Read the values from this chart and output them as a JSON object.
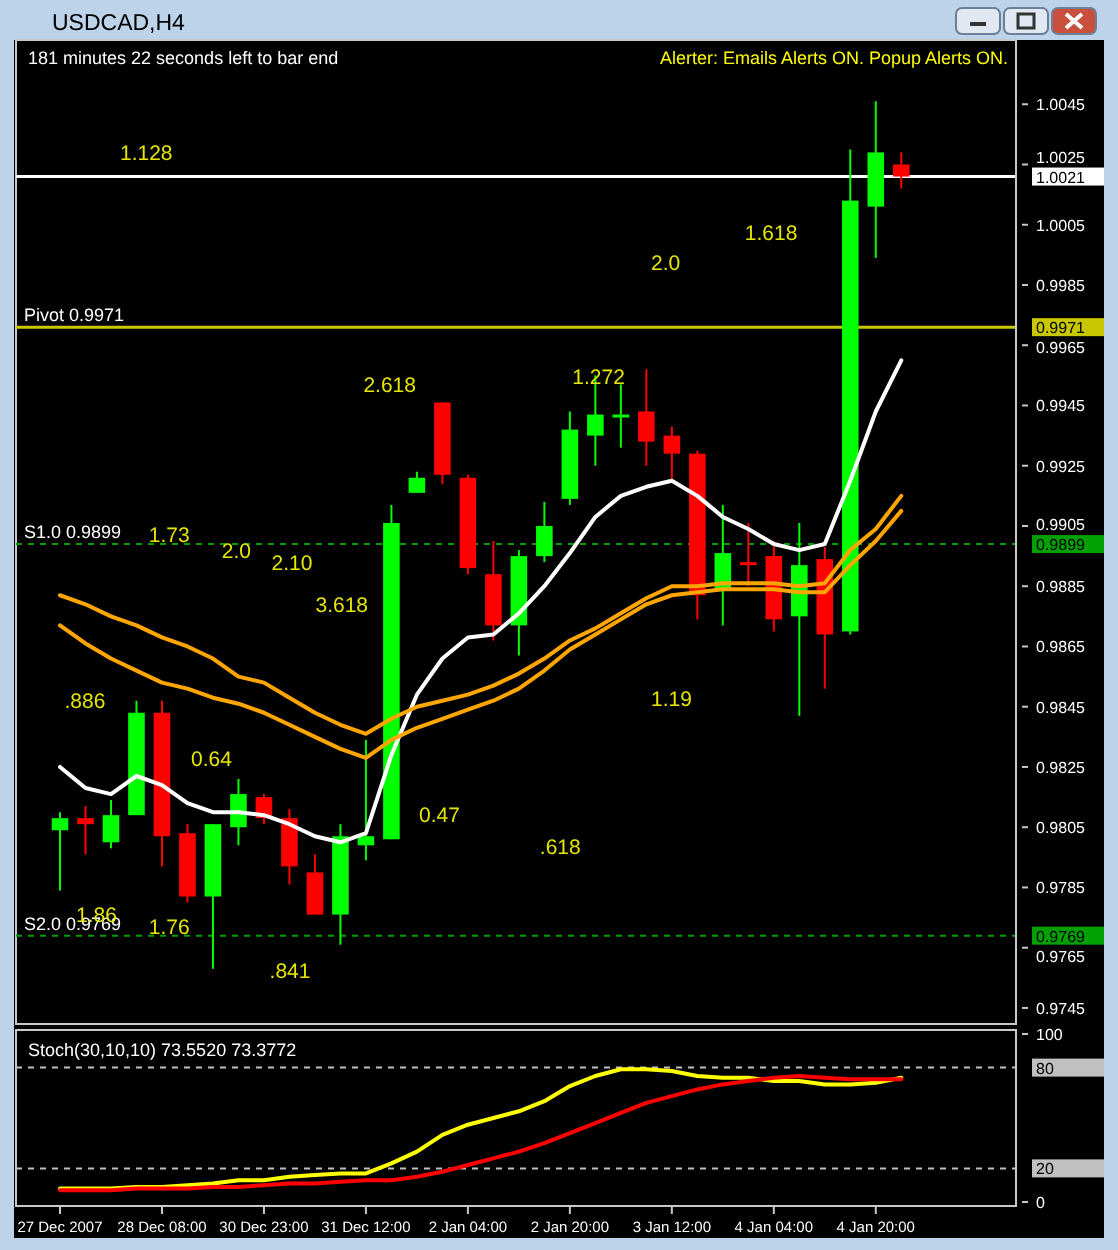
{
  "chart_data": [
    {
      "type": "candlestick",
      "title": "USDCAD,H4",
      "categories": [
        null,
        null,
        null,
        null,
        null,
        null,
        null,
        null,
        null,
        null,
        null,
        null,
        null,
        null,
        null,
        null,
        null,
        null,
        null,
        null,
        null,
        null,
        null,
        null,
        null,
        null,
        null,
        null,
        null,
        null,
        null,
        null,
        null,
        null
      ],
      "ohlc": [
        [
          0.9804,
          0.981,
          0.9784,
          0.9808
        ],
        [
          0.9808,
          0.9812,
          0.9796,
          0.9806
        ],
        [
          0.98,
          0.9814,
          0.9798,
          0.9809
        ],
        [
          0.9809,
          0.9847,
          0.9809,
          0.9843
        ],
        [
          0.9843,
          0.9847,
          0.9792,
          0.9802
        ],
        [
          0.9803,
          0.9806,
          0.978,
          0.9782
        ],
        [
          0.9782,
          0.9806,
          0.9758,
          0.9806
        ],
        [
          0.9805,
          0.9821,
          0.9799,
          0.9816
        ],
        [
          0.9815,
          0.9816,
          0.9806,
          0.9808
        ],
        [
          0.9808,
          0.9811,
          0.9786,
          0.9792
        ],
        [
          0.979,
          0.9796,
          0.9776,
          0.9776
        ],
        [
          0.9776,
          0.9806,
          0.9766,
          0.9802
        ],
        [
          0.9799,
          0.9834,
          0.9794,
          0.9802
        ],
        [
          0.9801,
          0.9912,
          0.9801,
          0.9906
        ],
        [
          0.9916,
          0.9923,
          0.9916,
          0.9921
        ],
        [
          0.9946,
          0.9946,
          0.9919,
          0.9922
        ],
        [
          0.9921,
          0.9922,
          0.9889,
          0.9891
        ],
        [
          0.9889,
          0.99,
          0.9867,
          0.9872
        ],
        [
          0.9872,
          0.9897,
          0.9862,
          0.9895
        ],
        [
          0.9895,
          0.9913,
          0.9893,
          0.9905
        ],
        [
          0.9914,
          0.9943,
          0.9912,
          0.9937
        ],
        [
          0.9935,
          0.9955,
          0.9925,
          0.9942
        ],
        [
          0.9941,
          0.9952,
          0.9931,
          0.9942
        ],
        [
          0.9943,
          0.9957,
          0.9925,
          0.9933
        ],
        [
          0.9935,
          0.9938,
          0.992,
          0.9929
        ],
        [
          0.9929,
          0.993,
          0.9874,
          0.9882
        ],
        [
          0.9884,
          0.9912,
          0.9872,
          0.9896
        ],
        [
          0.9893,
          0.9906,
          0.9885,
          0.9892
        ],
        [
          0.9895,
          0.99,
          0.987,
          0.9874
        ],
        [
          0.9875,
          0.9906,
          0.9842,
          0.9892
        ],
        [
          0.9894,
          0.9898,
          0.9851,
          0.9869
        ],
        [
          0.987,
          1.003,
          0.9869,
          1.0013
        ],
        [
          1.0011,
          1.0046,
          0.9994,
          1.0029
        ],
        [
          1.0025,
          1.0029,
          1.0017,
          1.0021
        ]
      ],
      "series": [
        {
          "type": "line",
          "color": "#ffffff",
          "values": [
            0.9825,
            0.9818,
            0.9816,
            0.9822,
            0.9819,
            0.9813,
            0.981,
            0.981,
            0.9809,
            0.9806,
            0.9802,
            0.98,
            0.9803,
            0.9829,
            0.9849,
            0.9861,
            0.9868,
            0.9869,
            0.9876,
            0.9885,
            0.9896,
            0.9908,
            0.9915,
            0.9918,
            0.992,
            0.9915,
            0.9908,
            0.9904,
            0.9899,
            0.9897,
            0.9899,
            0.992,
            0.9943,
            0.996
          ]
        },
        {
          "type": "line",
          "color": "#ffa500",
          "values": [
            0.9882,
            0.9879,
            0.9875,
            0.9872,
            0.9868,
            0.9865,
            0.9861,
            0.9855,
            0.9853,
            0.9848,
            0.9843,
            0.9839,
            0.9836,
            0.9841,
            0.9845,
            0.9847,
            0.9849,
            0.9852,
            0.9856,
            0.9861,
            0.9867,
            0.9871,
            0.9876,
            0.9881,
            0.9885,
            0.9885,
            0.9886,
            0.9886,
            0.9886,
            0.9885,
            0.9886,
            0.9897,
            0.9904,
            0.9915
          ]
        },
        {
          "type": "line",
          "color": "#ffa500",
          "values": [
            0.9872,
            0.9866,
            0.9861,
            0.9857,
            0.9853,
            0.9851,
            0.9848,
            0.9846,
            0.9843,
            0.9839,
            0.9835,
            0.9831,
            0.9828,
            0.9834,
            0.9838,
            0.9841,
            0.9844,
            0.9847,
            0.9851,
            0.9857,
            0.9864,
            0.9869,
            0.9874,
            0.9879,
            0.9882,
            0.9883,
            0.9884,
            0.9884,
            0.9884,
            0.9883,
            0.9883,
            0.9892,
            0.99,
            0.991
          ]
        }
      ],
      "ylim": [
        0.9741,
        1.0065
      ],
      "yticks": [
        0.9745,
        0.9765,
        0.9769,
        0.9785,
        0.9805,
        0.9825,
        0.9845,
        0.9865,
        0.9885,
        0.9899,
        0.9905,
        0.9925,
        0.9945,
        0.9965,
        0.9971,
        0.9985,
        1.0005,
        1.0021,
        1.0025,
        1.0045
      ],
      "tick_labels": "y",
      "ref_lines": [
        {
          "axis": "y",
          "value": 1.0021,
          "color": "#ffffff",
          "line_style": "solid"
        },
        {
          "axis": "y",
          "value": 0.9971,
          "label": "Pivot 0.9971",
          "color": "#c8c800",
          "line_style": "solid"
        },
        {
          "axis": "y",
          "value": 0.9899,
          "label": "S1.0 0.9899",
          "color": "#00a000",
          "line_style": "dashed"
        },
        {
          "axis": "y",
          "value": 0.9769,
          "label": "S2.0 0.9769",
          "color": "#00a000",
          "line_style": "dashed"
        }
      ],
      "annotations": [
        "181 minutes 22 seconds left to bar end",
        "Alerter:  Emails Alerts ON.  Popup Alerts ON.",
        "1.128",
        "2.0",
        "1.618",
        "2.618",
        "1.272",
        "1.73",
        "2.0",
        "2.10",
        "3.618",
        ".886",
        "0.64",
        "0.47",
        "1.19",
        ".618",
        "1.86",
        "1.76",
        ".841"
      ]
    },
    {
      "type": "line",
      "title": "Stoch(30,10,10) 73.5520 73.3772",
      "categories": [
        "27 Dec 2007",
        null,
        null,
        null,
        "28 Dec 08:00",
        null,
        null,
        null,
        "30 Dec 23:00",
        null,
        null,
        null,
        "31 Dec 12:00",
        null,
        null,
        null,
        "2 Jan 04:00",
        null,
        null,
        null,
        "2 Jan 20:00",
        null,
        null,
        null,
        "3 Jan 12:00",
        null,
        null,
        null,
        "4 Jan 04:00",
        null,
        null,
        null,
        "4 Jan 20:00",
        null
      ],
      "series": [
        {
          "color": "#ffff00",
          "values": [
            8,
            8,
            8,
            9,
            9,
            10,
            11,
            13,
            13,
            15,
            16,
            17,
            17,
            23,
            30,
            40,
            46,
            50,
            54,
            60,
            69,
            75,
            79,
            79,
            78,
            75,
            74,
            74,
            72,
            72,
            70,
            70,
            71,
            74
          ]
        },
        {
          "color": "#ff0000",
          "values": [
            7,
            7,
            7,
            8,
            8,
            8,
            9,
            9,
            10,
            11,
            11,
            12,
            13,
            13,
            15,
            18,
            22,
            26,
            30,
            35,
            41,
            47,
            53,
            59,
            63,
            67,
            70,
            72,
            74,
            75,
            74,
            73,
            73,
            73
          ]
        }
      ],
      "ylim": [
        0,
        100
      ],
      "yticks": [
        0,
        20,
        80,
        100
      ],
      "ref_lines": [
        {
          "axis": "y",
          "value": 80,
          "color": "#c0c0c0",
          "line_style": "dashed"
        },
        {
          "axis": "y",
          "value": 20,
          "color": "#c0c0c0",
          "line_style": "dashed"
        }
      ]
    }
  ]
}
